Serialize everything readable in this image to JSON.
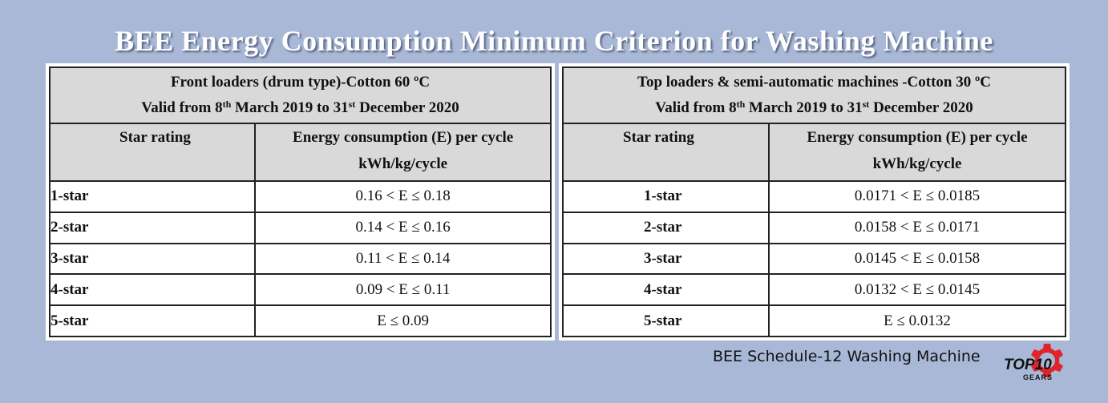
{
  "title": "BEE Energy Consumption Minimum Criterion for Washing Machine",
  "left_table": {
    "heading_line1": "Front loaders (drum type)-Cotton 60 ºC",
    "heading_line2_a": "Valid from 8",
    "heading_line2_sup1": "th",
    "heading_line2_b": " March 2019 to 31",
    "heading_line2_sup2": "st",
    "heading_line2_c": " December 2020",
    "col_star": "Star rating",
    "col_energy_line1": "Energy consumption (E) per cycle",
    "col_energy_line2": "kWh/kg/cycle",
    "rows": [
      {
        "star": "1-star",
        "value": "0.16 < E ≤  0.18"
      },
      {
        "star": "2-star",
        "value": "0.14 < E ≤  0.16"
      },
      {
        "star": "3-star",
        "value": "0.11 < E ≤  0.14"
      },
      {
        "star": "4-star",
        "value": "0.09 < E ≤  0.11"
      },
      {
        "star": "5-star",
        "value": "E  ≤  0.09"
      }
    ]
  },
  "right_table": {
    "heading_line1": "Top loaders & semi-automatic machines -Cotton 30 ºC",
    "heading_line2_a": "Valid from 8",
    "heading_line2_sup1": "th",
    "heading_line2_b": " March 2019 to 31",
    "heading_line2_sup2": "st",
    "heading_line2_c": " December 2020",
    "col_star": "Star rating",
    "col_energy_line1": "Energy consumption (E) per cycle",
    "col_energy_line2": "kWh/kg/cycle",
    "rows": [
      {
        "star": "1-star",
        "value": "0.0171 < E ≤  0.0185"
      },
      {
        "star": "2-star",
        "value": "0.0158 < E ≤  0.0171"
      },
      {
        "star": "3-star",
        "value": "0.0145 < E ≤  0.0158"
      },
      {
        "star": "4-star",
        "value": "0.0132 < E ≤  0.0145"
      },
      {
        "star": "5-star",
        "value": "E  ≤  0.0132"
      }
    ]
  },
  "footer": "BEE Schedule-12 Washing Machine",
  "logo": {
    "text_main": "TOP10",
    "text_sub": "GEARS",
    "icon": "gear-icon",
    "accent_color": "#e0242a",
    "text_color": "#111111"
  },
  "colors": {
    "background": "#a8b8d6",
    "header_fill": "#d9d9d9"
  }
}
